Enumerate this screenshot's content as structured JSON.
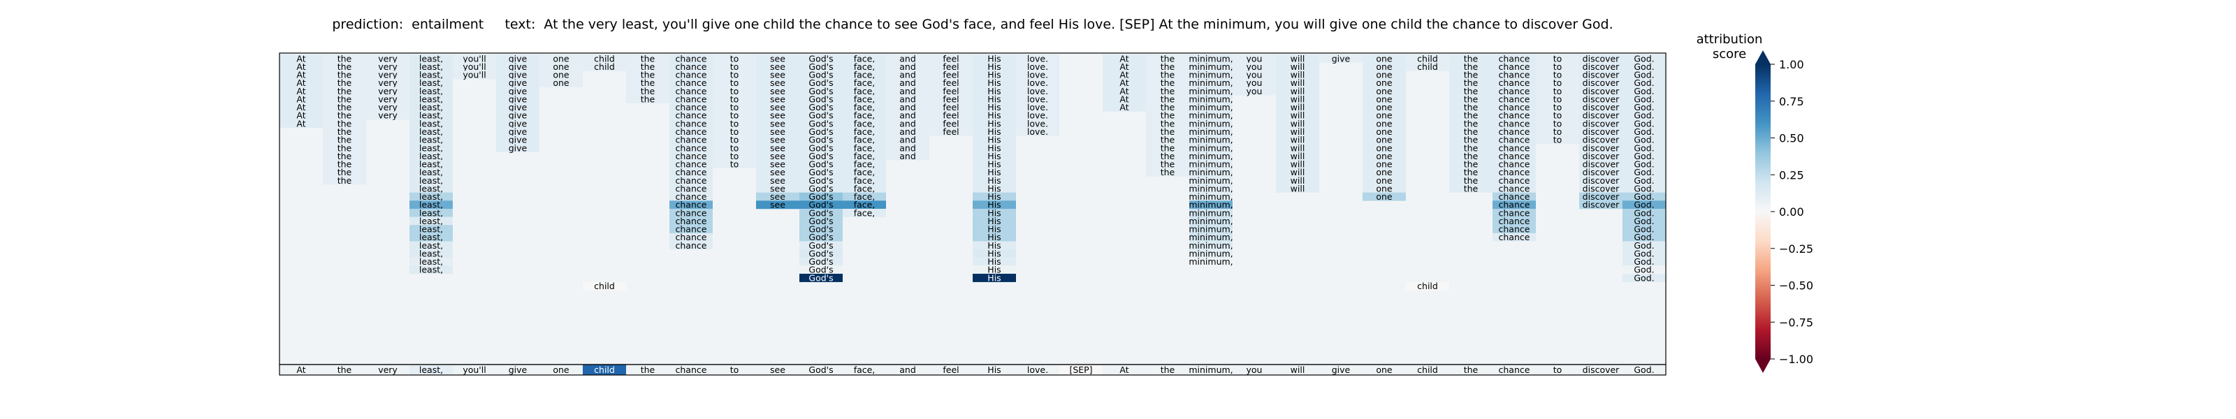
{
  "chart_data": {
    "type": "heatmap",
    "title": "prediction:  entailment     text:  At the very least, you'll give one child the chance to see God's face, and feel His love. [SEP] At the minimum, you will give one child the chance to discover God.",
    "colorbar_label": "attribution score",
    "colorbar_ticks": [
      "1.00",
      "0.75",
      "0.50",
      "0.25",
      "0.00",
      "−0.25",
      "−0.50",
      "−0.75",
      "−1.00"
    ],
    "vmin": -1,
    "vmax": 1,
    "colormap": [
      "#67001f",
      "#b2182b",
      "#d6604d",
      "#f4a582",
      "#fddbc7",
      "#f7f7f7",
      "#d1e5f0",
      "#92c5de",
      "#4393c3",
      "#2166ac",
      "#053061"
    ],
    "tokens": [
      "At",
      "the",
      "very",
      "least,",
      "you'll",
      "give",
      "one",
      "child",
      "the",
      "chance",
      "to",
      "see",
      "God's",
      "face,",
      "and",
      "feel",
      "His",
      "love.",
      "[SEP]",
      "At",
      "the",
      "minimum,",
      "you",
      "will",
      "give",
      "one",
      "child",
      "the",
      "chance",
      "to",
      "discover",
      "God."
    ],
    "token_scores": [
      0.05,
      0.05,
      0.05,
      0.1,
      0.05,
      0.05,
      0.05,
      0.8,
      0.05,
      0.05,
      0.05,
      0.05,
      0.05,
      0.05,
      0.05,
      0.05,
      0.05,
      0.05,
      0.0,
      0.05,
      0.05,
      0.05,
      0.05,
      0.05,
      0.05,
      0.05,
      0.05,
      0.05,
      0.05,
      0.05,
      0.05,
      0.05
    ],
    "columns": [
      {
        "top": 0,
        "count": 9,
        "score": 0.12
      },
      {
        "top": 0,
        "count": 16,
        "score": 0.1
      },
      {
        "top": 0,
        "count": 8,
        "score": 0.1
      },
      {
        "top": 0,
        "count": 27,
        "score": 0.13,
        "highlights": [
          [
            17,
            0.3
          ],
          [
            18,
            0.5
          ],
          [
            19,
            0.3
          ],
          [
            21,
            0.3
          ],
          [
            22,
            0.3
          ]
        ]
      },
      {
        "top": 0,
        "count": 3,
        "score": 0.1
      },
      {
        "top": 0,
        "count": 12,
        "score": 0.12
      },
      {
        "top": 0,
        "count": 4,
        "score": 0.1
      },
      {
        "top": 0,
        "count": 2,
        "score": 0.1
      },
      {
        "top": 0,
        "count": 6,
        "score": 0.1
      },
      {
        "top": 0,
        "count": 24,
        "score": 0.12,
        "highlights": [
          [
            18,
            0.5
          ],
          [
            19,
            0.3
          ],
          [
            20,
            0.3
          ],
          [
            21,
            0.3
          ]
        ]
      },
      {
        "top": 0,
        "count": 14,
        "score": 0.1
      },
      {
        "top": 0,
        "count": 19,
        "score": 0.12,
        "highlights": [
          [
            17,
            0.3
          ],
          [
            18,
            0.6
          ]
        ]
      },
      {
        "top": 0,
        "count": 26,
        "score": 0.12,
        "highlights": [
          [
            17,
            0.4
          ],
          [
            18,
            0.6
          ],
          [
            19,
            0.3
          ],
          [
            20,
            0.3
          ],
          [
            21,
            0.3
          ],
          [
            22,
            0.3
          ],
          [
            24,
            0.15
          ]
        ]
      },
      {
        "top": 0,
        "count": 20,
        "score": 0.12,
        "highlights": [
          [
            17,
            0.3
          ],
          [
            18,
            0.6
          ]
        ]
      },
      {
        "top": 0,
        "count": 13,
        "score": 0.1
      },
      {
        "top": 0,
        "count": 10,
        "score": 0.1
      },
      {
        "top": 0,
        "count": 26,
        "score": 0.12,
        "highlights": [
          [
            17,
            0.3
          ],
          [
            18,
            0.5
          ],
          [
            19,
            0.3
          ],
          [
            20,
            0.3
          ],
          [
            21,
            0.3
          ],
          [
            22,
            0.3
          ],
          [
            24,
            0.15
          ]
        ]
      },
      {
        "top": 0,
        "count": 10,
        "score": 0.1
      },
      {
        "top": 0,
        "count": 0,
        "score": 0.05
      },
      {
        "top": 0,
        "count": 7,
        "score": 0.12
      },
      {
        "top": 0,
        "count": 15,
        "score": 0.1
      },
      {
        "top": 0,
        "count": 25,
        "score": 0.12,
        "highlights": [
          [
            18,
            0.5
          ],
          [
            19,
            0.2
          ],
          [
            20,
            0.2
          ],
          [
            21,
            0.2
          ],
          [
            22,
            0.2
          ],
          [
            23,
            0.15
          ],
          [
            24,
            0.1
          ]
        ]
      },
      {
        "top": 0,
        "count": 5,
        "score": 0.1
      },
      {
        "top": 0,
        "count": 17,
        "score": 0.12
      },
      {
        "top": 0,
        "count": 1,
        "score": 0.1
      },
      {
        "top": 0,
        "count": 18,
        "score": 0.12,
        "highlights": [
          [
            17,
            0.3
          ]
        ]
      },
      {
        "top": 0,
        "count": 2,
        "score": 0.1
      },
      {
        "top": 0,
        "count": 17,
        "score": 0.12
      },
      {
        "top": 0,
        "count": 23,
        "score": 0.12,
        "highlights": [
          [
            17,
            0.3
          ],
          [
            18,
            0.5
          ],
          [
            19,
            0.3
          ],
          [
            20,
            0.3
          ],
          [
            21,
            0.3
          ]
        ]
      },
      {
        "top": 0,
        "count": 11,
        "score": 0.1
      },
      {
        "top": 0,
        "count": 19,
        "score": 0.12,
        "highlights": [
          [
            17,
            0.3
          ],
          [
            18,
            0.3
          ]
        ]
      },
      {
        "top": 0,
        "count": 28,
        "score": 0.12,
        "highlights": [
          [
            17,
            0.3
          ],
          [
            18,
            0.5
          ],
          [
            19,
            0.3
          ],
          [
            20,
            0.3
          ],
          [
            21,
            0.3
          ],
          [
            22,
            0.3
          ]
        ]
      }
    ],
    "extra_cells": [
      {
        "col": 3,
        "row": 25,
        "text": "least,",
        "score": 0.1
      },
      {
        "col": 12,
        "row": 26,
        "text": "God's",
        "score": 0.05
      },
      {
        "col": 12,
        "row": 27,
        "text": "God's",
        "score": 1.0
      },
      {
        "col": 16,
        "row": 26,
        "text": "His",
        "score": 0.05
      },
      {
        "col": 16,
        "row": 27,
        "text": "His",
        "score": 1.0
      },
      {
        "col": 21,
        "row": 25,
        "text": "minimum,",
        "score": 0.05
      },
      {
        "col": 31,
        "row": 26,
        "text": "God.",
        "score": 0.05
      },
      {
        "col": 7,
        "row": 28,
        "text": "child",
        "score": 0.0
      },
      {
        "col": 26,
        "row": 28,
        "text": "child",
        "score": 0.0
      }
    ]
  }
}
